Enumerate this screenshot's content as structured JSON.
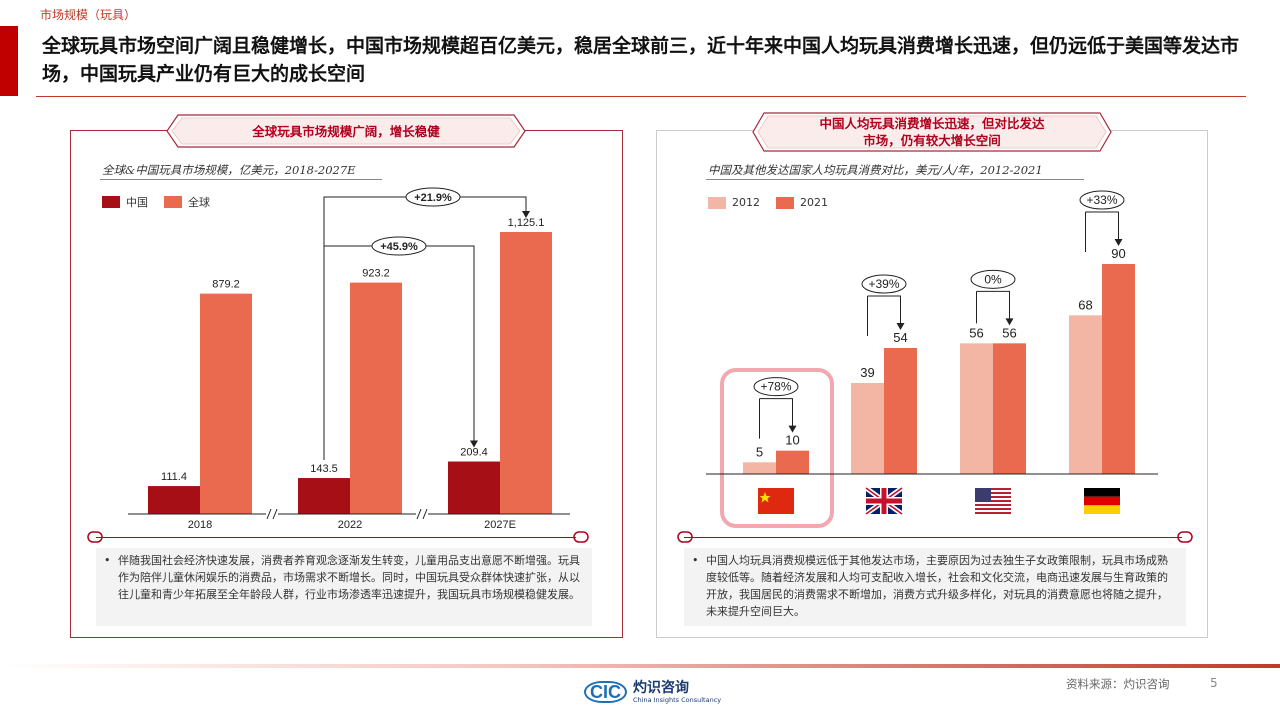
{
  "header": {
    "section_tag": "市场规模（玩具）",
    "headline": "全球玩具市场空间广阔且稳健增长，中国市场规模超百亿美元，稳居全球前三，近十年来中国人均玩具消费增长迅速，但仍远低于美国等发达市场，中国玩具产业仍有巨大的成长空间"
  },
  "left_panel": {
    "ribbon": "全球玩具市场规模广阔，增长稳健",
    "subtitle": "全球&中国玩具市场规模，亿美元，2018-2027E",
    "legend": [
      {
        "label": "中国",
        "color": "#a50f15"
      },
      {
        "label": "全球",
        "color": "#ea6a50"
      }
    ],
    "notes": "伴随我国社会经济快速发展，消费者养育观念逐渐发生转变，儿童用品支出意愿不断增强。玩具作为陪伴儿童休闲娱乐的消费品，市场需求不断增长。同时，中国玩具受众群体快速扩张，从以往儿童和青少年拓展至全年龄段人群，行业市场渗透率迅速提升，我国玩具市场规模稳健发展。"
  },
  "right_panel": {
    "ribbon_line1": "中国人均玩具消费增长迅速，但对比发达",
    "ribbon_line2": "市场，仍有较大增长空间",
    "subtitle": "中国及其他发达国家人均玩具消费对比，美元/人/年，2012-2021",
    "legend": [
      {
        "label": "2012",
        "color": "#f4b6a4"
      },
      {
        "label": "2021",
        "color": "#ea6a50"
      }
    ],
    "notes": "中国人均玩具消费规模远低于其他发达市场，主要原因为过去独生子女政策限制，玩具市场成熟度较低等。随着经济发展和人均可支配收入增长，社会和文化交流，电商迅速发展与生育政策的开放，我国居民的消费需求不断增加，消费方式升级多样化，对玩具的消费意愿也将随之提升，未来提升空间巨大。"
  },
  "chart_data": [
    {
      "type": "bar",
      "categories": [
        "2018",
        "2022",
        "2027E"
      ],
      "series": [
        {
          "name": "中国",
          "values": [
            111.4,
            143.5,
            209.4
          ],
          "labels": [
            "111.4",
            "143.5",
            "209.4"
          ]
        },
        {
          "name": "全球",
          "values": [
            879.2,
            923.2,
            1125.1
          ],
          "labels": [
            "879.2",
            "923.2",
            "1,125.1"
          ]
        }
      ],
      "annotations": [
        {
          "text": "+45.9%",
          "from": "中国 2022",
          "to": "中国 2027E"
        },
        {
          "text": "+21.9%",
          "from": "全球 2022",
          "to": "全球 2027E"
        }
      ],
      "ylim": [
        0,
        1200
      ]
    },
    {
      "type": "bar",
      "categories": [
        "China",
        "UK",
        "US",
        "Germany"
      ],
      "category_icons": [
        "china-flag-icon",
        "uk-flag-icon",
        "us-flag-icon",
        "germany-flag-icon"
      ],
      "series": [
        {
          "name": "2012",
          "values": [
            5,
            39,
            56,
            68
          ]
        },
        {
          "name": "2021",
          "values": [
            10,
            54,
            56,
            90
          ]
        }
      ],
      "growth_labels": [
        "+78%",
        "+39%",
        "0%",
        "+33%"
      ],
      "highlighted_category": "China",
      "ylim": [
        0,
        100
      ]
    }
  ],
  "footer": {
    "logo_mark": "CIC",
    "logo_cn": "灼识咨询",
    "logo_en": "China Insights Consultancy",
    "source": "资料来源：灼识咨询",
    "page_number": "5"
  }
}
